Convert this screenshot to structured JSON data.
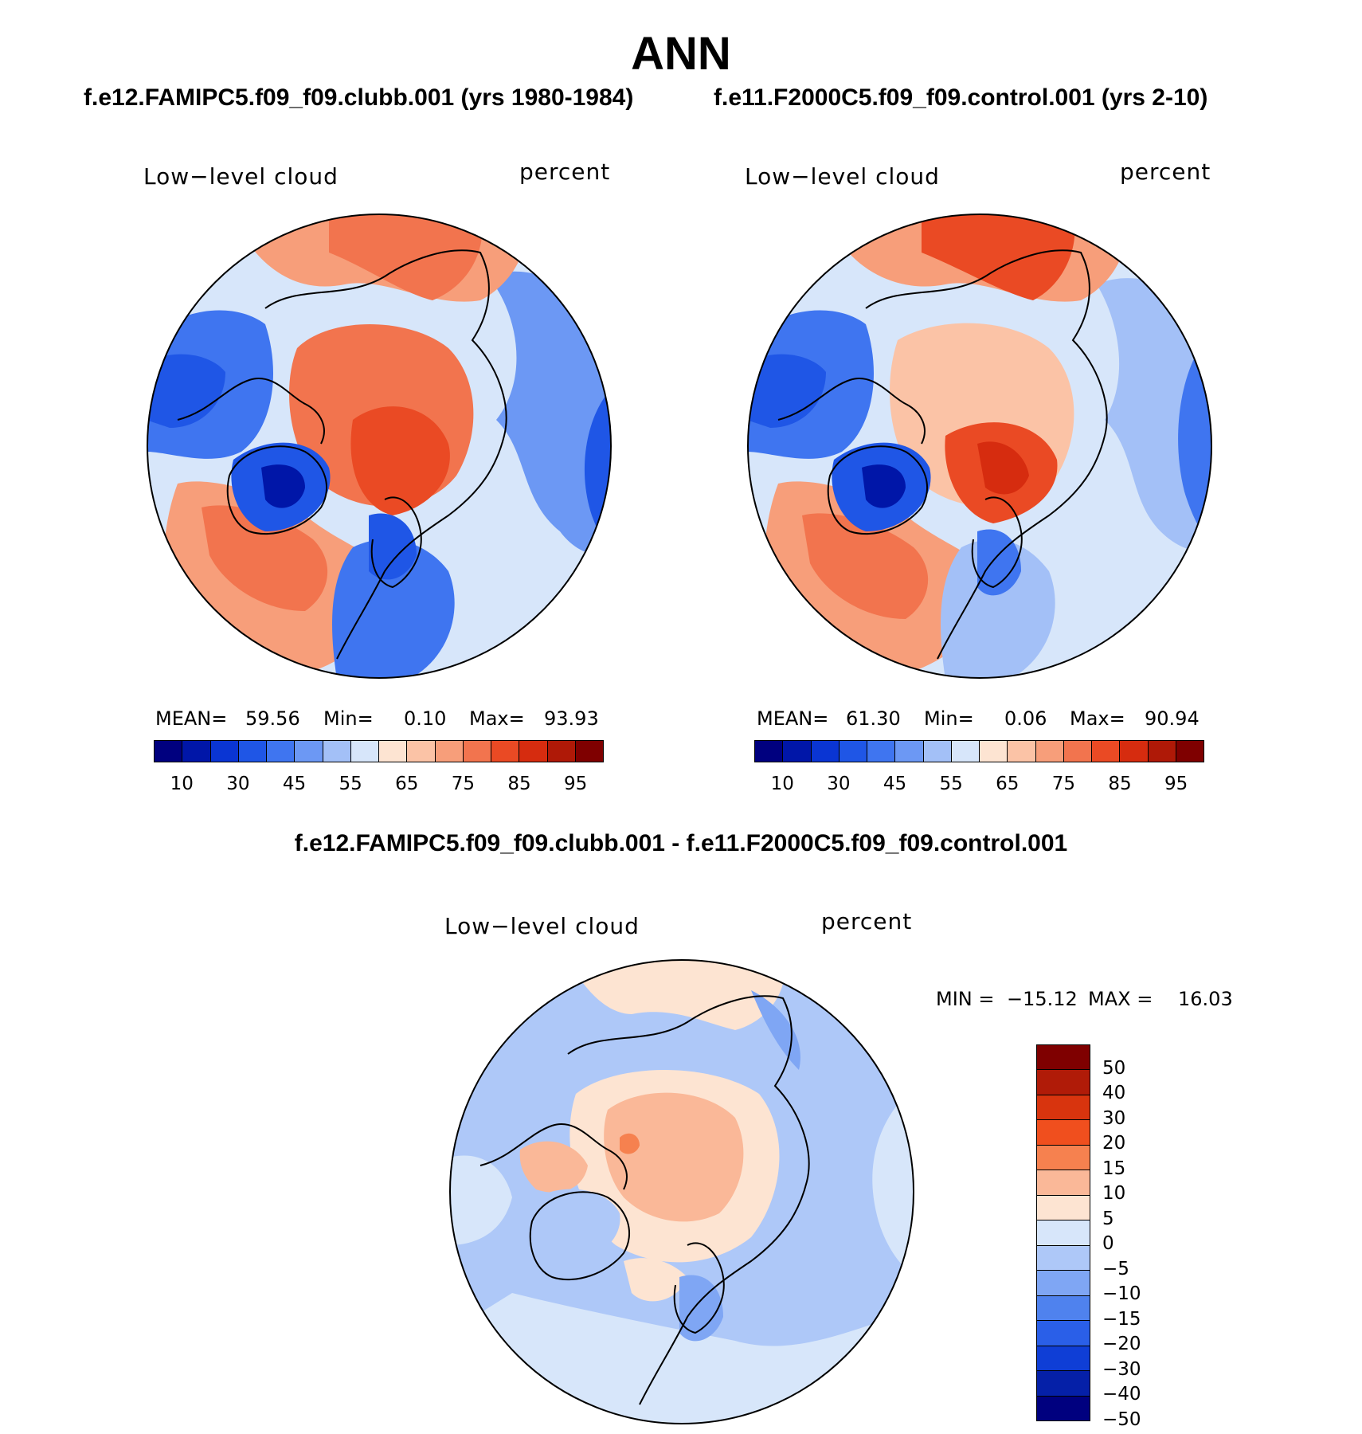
{
  "title": "ANN",
  "panels": [
    {
      "case_title": "f.e12.FAMIPC5.f09_f09.clubb.001 (yrs 1980-1984)",
      "left_label": "Low−level cloud",
      "right_label": "percent",
      "stats": {
        "mean_label": "MEAN=",
        "mean": "59.56",
        "min_label": "Min=",
        "min": "0.10",
        "max_label": "Max=",
        "max": "93.93"
      }
    },
    {
      "case_title": "f.e11.F2000C5.f09_f09.control.001 (yrs 2-10)",
      "left_label": "Low−level cloud",
      "right_label": "percent",
      "stats": {
        "mean_label": "MEAN=",
        "mean": "61.30",
        "min_label": "Min=",
        "min": "0.06",
        "max_label": "Max=",
        "max": "90.94"
      }
    }
  ],
  "colorbar_levels": [
    "10",
    "30",
    "45",
    "55",
    "65",
    "75",
    "85",
    "95"
  ],
  "colorbar_colors": [
    "#00007f",
    "#0016a8",
    "#0a35d3",
    "#1f56e6",
    "#3f75f0",
    "#6c98f4",
    "#a3c0f7",
    "#d7e6fa",
    "#fde4d2",
    "#fbc3a6",
    "#f79e7a",
    "#f2744e",
    "#ea4a24",
    "#d62c0f",
    "#af1907",
    "#7f0000"
  ],
  "diff": {
    "title": "f.e12.FAMIPC5.f09_f09.clubb.001 - f.e11.F2000C5.f09_f09.control.001",
    "left_label": "Low−level cloud",
    "right_label": "percent",
    "minmax": {
      "min_label": "MIN =",
      "min": "−15.12",
      "max_label": "MAX =",
      "max": "16.03"
    },
    "levels": [
      "50",
      "40",
      "30",
      "20",
      "15",
      "10",
      "5",
      "0",
      "−5",
      "−10",
      "−15",
      "−20",
      "−30",
      "−40",
      "−50"
    ],
    "colors": [
      "#7f0000",
      "#b01b08",
      "#d8340e",
      "#f04f1e",
      "#f6814f",
      "#fab898",
      "#fde4d2",
      "#d7e6fa",
      "#aec8f8",
      "#7fa6f4",
      "#4f82ee",
      "#2a5fe8",
      "#0f3ed6",
      "#0520a8",
      "#00007f"
    ]
  }
}
